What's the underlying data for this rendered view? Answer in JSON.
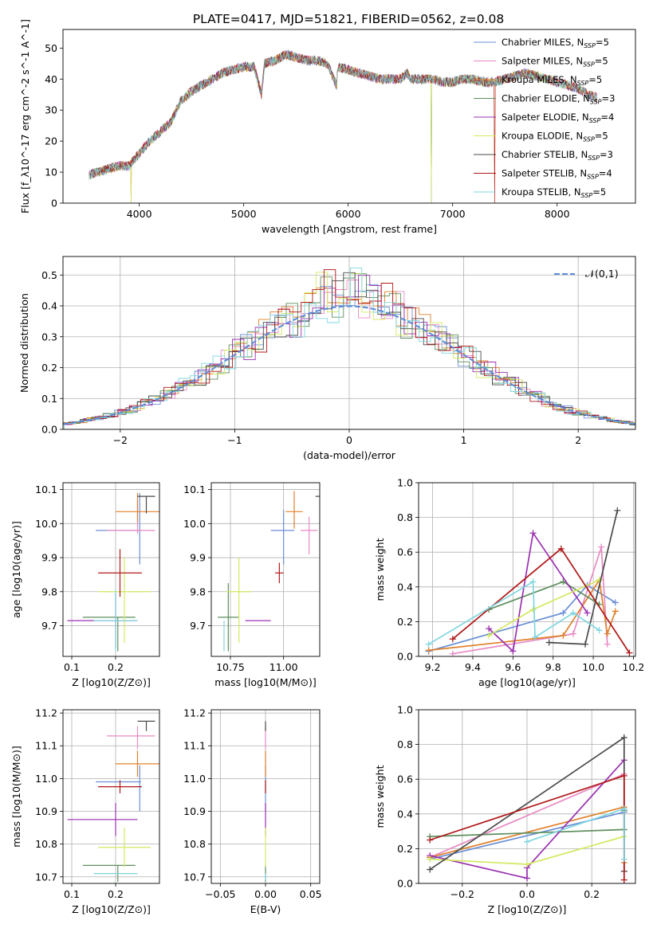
{
  "figure": {
    "title": "PLATE=0417, MJD=51821, FIBERID=0562, z=0.08"
  },
  "model_colors": {
    "Chabrier MILES": "#6a8fd6",
    "Salpeter MILES": "#e88ac4",
    "Kroupa MILES": "#e0802a",
    "Chabrier ELODIE": "#5f8f5f",
    "Salpeter ELODIE": "#9b30b0",
    "Kroupa ELODIE": "#d4e860",
    "Chabrier STELIB": "#4a4a4a",
    "Salpeter STELIB": "#b01818",
    "Kroupa STELIB": "#7fd6e0"
  },
  "chart_data": [
    {
      "id": "spectrum",
      "type": "line",
      "title": "PLATE=0417, MJD=51821, FIBERID=0562, z=0.08",
      "xlabel": "wavelength [Angstrom, rest frame]",
      "ylabel": "Flux [f_λ10^-17 erg cm^-2 s^-1 A^-1]",
      "xlim": [
        3270,
        8750
      ],
      "ylim": [
        0,
        56
      ],
      "xticks": [
        4000,
        5000,
        6000,
        7000,
        8000
      ],
      "yticks": [
        0,
        10,
        20,
        30,
        40,
        50
      ],
      "grid": false,
      "legend_position": "top-right",
      "x": [
        3520,
        3600,
        3700,
        3800,
        3900,
        4000,
        4100,
        4200,
        4300,
        4400,
        4500,
        4600,
        4700,
        4800,
        4900,
        5000,
        5100,
        5170,
        5200,
        5300,
        5400,
        5500,
        5600,
        5700,
        5800,
        5890,
        5900,
        6000,
        6100,
        6200,
        6300,
        6400,
        6500,
        6560,
        6600,
        6700,
        6800,
        6900,
        7000,
        7100,
        7200,
        7300,
        7400,
        7500,
        7600,
        7700,
        7800,
        7900,
        8000,
        8100,
        8200,
        8300,
        8380
      ],
      "series": [
        {
          "name": "Chabrier MILES, N_SSP=5"
        },
        {
          "name": "Salpeter MILES, N_SSP=5"
        },
        {
          "name": "Kroupa MILES, N_SSP=5"
        },
        {
          "name": "Chabrier ELODIE, N_SSP=3"
        },
        {
          "name": "Salpeter ELODIE, N_SSP=4"
        },
        {
          "name": "Kroupa ELODIE, N_SSP=5"
        },
        {
          "name": "Chabrier STELIB, N_SSP=3"
        },
        {
          "name": "Salpeter STELIB, N_SSP=4"
        },
        {
          "name": "Kroupa STELIB, N_SSP=5"
        }
      ],
      "flux": [
        9,
        10,
        11,
        12,
        12,
        16,
        20,
        23,
        26,
        33,
        36,
        38,
        40,
        42,
        43,
        44,
        44,
        35,
        45,
        46,
        48,
        47,
        46,
        46,
        45,
        38,
        44,
        43,
        42,
        41,
        40,
        40,
        40,
        42,
        40,
        40,
        40,
        39,
        39,
        40,
        40,
        39,
        39,
        40,
        41,
        42,
        41,
        40,
        39,
        38,
        37,
        35,
        34
      ],
      "dropouts": [
        3920,
        6795,
        7400
      ]
    },
    {
      "id": "residuals",
      "type": "histogram",
      "xlabel": "(data-model)/error",
      "ylabel": "Normed distribution",
      "xlim": [
        -2.5,
        2.5
      ],
      "ylim": [
        0,
        0.56
      ],
      "xticks": [
        -2,
        -1,
        0,
        1,
        2
      ],
      "yticks": [
        0.0,
        0.1,
        0.2,
        0.3,
        0.4,
        0.5
      ],
      "grid": true,
      "legend_position": "top-right",
      "reference": {
        "name": "𝒩(0,1)",
        "style": "dashed",
        "mean": 0,
        "sigma": 1
      },
      "bin_width": 0.1
    },
    {
      "id": "age_vs_Z",
      "type": "errorbar",
      "xlabel": "Z [log10(Z/Z⊙)]",
      "ylabel": "age [log10(age/yr)]",
      "xlim": [
        0.08,
        0.3
      ],
      "ylim": [
        9.61,
        10.12
      ],
      "xticks": [
        0.1,
        0.2
      ],
      "yticks": [
        9.7,
        9.8,
        9.9,
        10.0,
        10.1
      ],
      "grid": true,
      "points": [
        {
          "model": "Chabrier MILES",
          "x": 0.255,
          "xerr": [
            0.1,
            0.003
          ],
          "y": 9.98,
          "yerr": [
            0.1,
            0.11
          ]
        },
        {
          "model": "Salpeter MILES",
          "x": 0.25,
          "xerr": [
            0.07,
            0.04
          ],
          "y": 9.98,
          "yerr": [
            0.01,
            0.09
          ]
        },
        {
          "model": "Kroupa MILES",
          "x": 0.25,
          "xerr": [
            0.05,
            0.05
          ],
          "y": 10.035,
          "yerr": [
            0.03,
            0.055
          ]
        },
        {
          "model": "Chabrier ELODIE",
          "x": 0.205,
          "xerr": [
            0.08,
            0.04
          ],
          "y": 9.725,
          "yerr": [
            0.1,
            0.0
          ]
        },
        {
          "model": "Salpeter ELODIE",
          "x": 0.2,
          "xerr": [
            0.11,
            0.05
          ],
          "y": 9.715,
          "yerr": [
            0.08,
            0.08
          ]
        },
        {
          "model": "Kroupa ELODIE",
          "x": 0.22,
          "xerr": [
            0.06,
            0.06
          ],
          "y": 9.8,
          "yerr": [
            0.15,
            0.1
          ]
        },
        {
          "model": "Chabrier STELIB",
          "x": 0.27,
          "xerr": [
            0.02,
            0.02
          ],
          "y": 10.08,
          "yerr": [
            0.05,
            0.0
          ]
        },
        {
          "model": "Salpeter STELIB",
          "x": 0.21,
          "xerr": [
            0.05,
            0.05
          ],
          "y": 9.855,
          "yerr": [
            0.07,
            0.07
          ]
        },
        {
          "model": "Kroupa STELIB",
          "x": 0.2,
          "xerr": [
            0.05,
            0.05
          ],
          "y": 9.715,
          "yerr": [
            0.09,
            0.09
          ]
        }
      ]
    },
    {
      "id": "age_vs_mass",
      "type": "errorbar",
      "xlabel": "mass [log10(M/M⊙)]",
      "ylabel": "",
      "xlim": [
        10.66,
        11.17
      ],
      "ylim": [
        9.61,
        10.12
      ],
      "xticks": [
        10.75,
        11.0
      ],
      "yticks": [
        9.7,
        9.8,
        9.9,
        10.0,
        10.1
      ],
      "grid": true,
      "points": [
        {
          "model": "Chabrier MILES",
          "x": 11.0,
          "xerr": [
            0.06,
            0.05
          ],
          "y": 9.98,
          "yerr": [
            0.1,
            0.06
          ]
        },
        {
          "model": "Salpeter MILES",
          "x": 11.12,
          "xerr": [
            0.04,
            0.04
          ],
          "y": 9.98,
          "yerr": [
            0.07,
            0.04
          ]
        },
        {
          "model": "Kroupa MILES",
          "x": 11.05,
          "xerr": [
            0.04,
            0.04
          ],
          "y": 10.035,
          "yerr": [
            0.05,
            0.06
          ]
        },
        {
          "model": "Chabrier ELODIE",
          "x": 10.74,
          "xerr": [
            0.05,
            0.05
          ],
          "y": 9.725,
          "yerr": [
            0.1,
            0.1
          ]
        },
        {
          "model": "Salpeter ELODIE",
          "x": 10.88,
          "xerr": [
            0.06,
            0.06
          ],
          "y": 9.715,
          "yerr": [
            0.0,
            0.0
          ]
        },
        {
          "model": "Kroupa ELODIE",
          "x": 10.79,
          "xerr": [
            0.06,
            0.06
          ],
          "y": 9.8,
          "yerr": [
            0.15,
            0.1
          ]
        },
        {
          "model": "Chabrier STELIB",
          "x": 11.18,
          "xerr": [
            0.03,
            0.0
          ],
          "y": 10.08,
          "yerr": [
            0.05,
            0.0
          ]
        },
        {
          "model": "Salpeter STELIB",
          "x": 10.98,
          "xerr": [
            0.02,
            0.02
          ],
          "y": 9.855,
          "yerr": [
            0.03,
            0.03
          ]
        },
        {
          "model": "Kroupa STELIB",
          "x": 10.72,
          "xerr": [
            0.0,
            0.0
          ],
          "y": 9.715,
          "yerr": [
            0.09,
            0.0
          ]
        }
      ]
    },
    {
      "id": "mass_vs_Z",
      "type": "errorbar",
      "xlabel": "Z [log10(Z/Z⊙)]",
      "ylabel": "mass [log10(M/M⊙)]",
      "xlim": [
        0.08,
        0.3
      ],
      "ylim": [
        10.68,
        11.21
      ],
      "xticks": [
        0.1,
        0.2
      ],
      "yticks": [
        10.7,
        10.8,
        10.9,
        11.0,
        11.1,
        11.2
      ],
      "grid": true,
      "points": [
        {
          "model": "Chabrier MILES",
          "x": 0.255,
          "xerr": [
            0.1,
            0.003
          ],
          "y": 10.99,
          "yerr": [
            0.09,
            0.05
          ]
        },
        {
          "model": "Salpeter MILES",
          "x": 0.25,
          "xerr": [
            0.07,
            0.04
          ],
          "y": 11.13,
          "yerr": [
            0.04,
            0.03
          ]
        },
        {
          "model": "Kroupa MILES",
          "x": 0.25,
          "xerr": [
            0.05,
            0.05
          ],
          "y": 11.045,
          "yerr": [
            0.04,
            0.04
          ]
        },
        {
          "model": "Chabrier ELODIE",
          "x": 0.205,
          "xerr": [
            0.08,
            0.04
          ],
          "y": 10.735,
          "yerr": [
            0.05,
            0.0
          ]
        },
        {
          "model": "Salpeter ELODIE",
          "x": 0.2,
          "xerr": [
            0.11,
            0.05
          ],
          "y": 10.875,
          "yerr": [
            0.05,
            0.05
          ]
        },
        {
          "model": "Kroupa ELODIE",
          "x": 0.22,
          "xerr": [
            0.06,
            0.06
          ],
          "y": 10.79,
          "yerr": [
            0.06,
            0.06
          ]
        },
        {
          "model": "Chabrier STELIB",
          "x": 0.27,
          "xerr": [
            0.02,
            0.02
          ],
          "y": 11.175,
          "yerr": [
            0.03,
            0.0
          ]
        },
        {
          "model": "Salpeter STELIB",
          "x": 0.21,
          "xerr": [
            0.05,
            0.05
          ],
          "y": 10.975,
          "yerr": [
            0.02,
            0.02
          ]
        },
        {
          "model": "Kroupa STELIB",
          "x": 0.2,
          "xerr": [
            0.05,
            0.05
          ],
          "y": 10.71,
          "yerr": [
            0.0,
            0.0
          ]
        }
      ]
    },
    {
      "id": "mass_vs_ebv",
      "type": "errorbar",
      "xlabel": "E(B-V)",
      "ylabel": "",
      "xlim": [
        -0.06,
        0.06
      ],
      "ylim": [
        10.68,
        11.21
      ],
      "xticks": [
        -0.05,
        0.0,
        0.05
      ],
      "yticks": [
        10.7,
        10.8,
        10.9,
        11.0,
        11.1,
        11.2
      ],
      "grid": true,
      "points": [
        {
          "model": "Chabrier MILES",
          "x": 0.0,
          "xerr": [
            0,
            0
          ],
          "y": 10.99,
          "yerr": [
            0.09,
            0.05
          ]
        },
        {
          "model": "Salpeter MILES",
          "x": 0.0,
          "xerr": [
            0,
            0
          ],
          "y": 11.13,
          "yerr": [
            0.04,
            0.03
          ]
        },
        {
          "model": "Kroupa MILES",
          "x": 0.0,
          "xerr": [
            0,
            0
          ],
          "y": 11.045,
          "yerr": [
            0.04,
            0.04
          ]
        },
        {
          "model": "Chabrier ELODIE",
          "x": 0.0,
          "xerr": [
            0,
            0
          ],
          "y": 10.735,
          "yerr": [
            0.05,
            0.0
          ]
        },
        {
          "model": "Salpeter ELODIE",
          "x": 0.0,
          "xerr": [
            0,
            0
          ],
          "y": 10.875,
          "yerr": [
            0.05,
            0.05
          ]
        },
        {
          "model": "Kroupa ELODIE",
          "x": 0.0,
          "xerr": [
            0,
            0
          ],
          "y": 10.79,
          "yerr": [
            0.06,
            0.06
          ]
        },
        {
          "model": "Chabrier STELIB",
          "x": 0.0,
          "xerr": [
            0,
            0
          ],
          "y": 11.175,
          "yerr": [
            0.03,
            0.0
          ]
        },
        {
          "model": "Salpeter STELIB",
          "x": 0.0,
          "xerr": [
            0,
            0
          ],
          "y": 10.975,
          "yerr": [
            0.02,
            0.02
          ]
        },
        {
          "model": "Kroupa STELIB",
          "x": 0.0,
          "xerr": [
            0,
            0
          ],
          "y": 10.71,
          "yerr": [
            0.02,
            0.0
          ]
        }
      ]
    },
    {
      "id": "weight_vs_age",
      "type": "line",
      "xlabel": "age [log10(age/yr)]",
      "ylabel": "mass weight",
      "xlim": [
        9.13,
        10.21
      ],
      "ylim": [
        0.0,
        1.0
      ],
      "xticks": [
        9.2,
        9.4,
        9.6,
        9.8,
        10.0,
        10.2
      ],
      "yticks": [
        0.0,
        0.2,
        0.4,
        0.6,
        0.8,
        1.0
      ],
      "grid": true,
      "series": [
        {
          "model": "Chabrier MILES",
          "x": [
            9.18,
            9.85,
            9.97,
            10.11
          ],
          "y": [
            0.03,
            0.25,
            0.41,
            0.31
          ]
        },
        {
          "model": "Salpeter MILES",
          "x": [
            9.3,
            9.9,
            10.04,
            10.07
          ],
          "y": [
            0.015,
            0.13,
            0.63,
            0.07
          ]
        },
        {
          "model": "Kroupa MILES",
          "x": [
            9.18,
            9.85,
            10.03,
            10.07,
            10.11
          ],
          "y": [
            0.035,
            0.12,
            0.44,
            0.13,
            0.26
          ]
        },
        {
          "model": "Chabrier ELODIE",
          "x": [
            9.48,
            9.85,
            10.03
          ],
          "y": [
            0.27,
            0.43,
            0.3
          ]
        },
        {
          "model": "Salpeter ELODIE",
          "x": [
            9.48,
            9.6,
            9.7,
            9.97
          ],
          "y": [
            0.16,
            0.03,
            0.71,
            0.25
          ]
        },
        {
          "model": "Kroupa ELODIE",
          "x": [
            9.48,
            9.7,
            10.03
          ],
          "y": [
            0.12,
            0.27,
            0.44
          ]
        },
        {
          "model": "Chabrier STELIB",
          "x": [
            9.78,
            9.96,
            10.12
          ],
          "y": [
            0.08,
            0.07,
            0.84
          ]
        },
        {
          "model": "Salpeter STELIB",
          "x": [
            9.3,
            9.84,
            10.18
          ],
          "y": [
            0.1,
            0.62,
            0.02
          ]
        },
        {
          "model": "Kroupa STELIB",
          "x": [
            9.18,
            9.7,
            9.71,
            9.9,
            10.03
          ],
          "y": [
            0.07,
            0.43,
            0.11,
            0.25,
            0.15
          ]
        }
      ]
    },
    {
      "id": "weight_vs_Z",
      "type": "line",
      "xlabel": "Z [log10(Z/Z⊙)]",
      "ylabel": "mass weight",
      "xlim": [
        -0.335,
        0.335
      ],
      "ylim": [
        0.0,
        1.0
      ],
      "xticks": [
        -0.2,
        0.0,
        0.2
      ],
      "yticks": [
        0.0,
        0.2,
        0.4,
        0.6,
        0.8,
        1.0
      ],
      "grid": true,
      "series": [
        {
          "model": "Chabrier MILES",
          "x": [
            -0.3,
            0.3
          ],
          "y": [
            0.14,
            0.41
          ]
        },
        {
          "model": "Salpeter MILES",
          "x": [
            -0.3,
            0.3,
            0.3
          ],
          "y": [
            0.15,
            0.63,
            0.07
          ]
        },
        {
          "model": "Kroupa MILES",
          "x": [
            -0.3,
            0.3,
            0.3
          ],
          "y": [
            0.15,
            0.44,
            0.12
          ]
        },
        {
          "model": "Chabrier ELODIE",
          "x": [
            -0.3,
            0.3,
            0.3
          ],
          "y": [
            0.27,
            0.31,
            0.42
          ]
        },
        {
          "model": "Salpeter ELODIE",
          "x": [
            -0.3,
            0.0,
            0.0,
            0.3
          ],
          "y": [
            0.16,
            0.03,
            0.09,
            0.71
          ]
        },
        {
          "model": "Kroupa ELODIE",
          "x": [
            -0.3,
            0.0,
            0.3
          ],
          "y": [
            0.14,
            0.11,
            0.27
          ]
        },
        {
          "model": "Chabrier STELIB",
          "x": [
            -0.3,
            0.3,
            0.3
          ],
          "y": [
            0.08,
            0.84,
            0.07
          ]
        },
        {
          "model": "Salpeter STELIB",
          "x": [
            -0.3,
            0.3,
            0.3
          ],
          "y": [
            0.25,
            0.62,
            0.02
          ]
        },
        {
          "model": "Kroupa STELIB",
          "x": [
            0.0,
            0.3,
            0.3
          ],
          "y": [
            0.24,
            0.43,
            0.14
          ]
        }
      ]
    }
  ]
}
